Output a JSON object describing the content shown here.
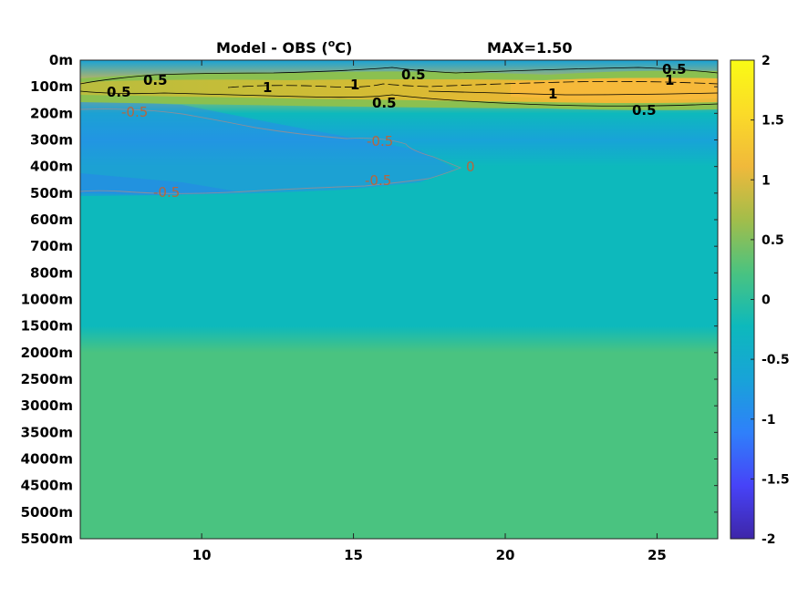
{
  "chart_data": {
    "type": "heatmap",
    "title": "Model - OBS (",
    "title_unit_sup": "o",
    "title_unit_tail": "C)",
    "max_label": "MAX=1.50",
    "x_ticks": [
      10,
      15,
      20,
      25
    ],
    "xlim": [
      6,
      27
    ],
    "y_ticks": [
      "0m",
      "100m",
      "200m",
      "300m",
      "400m",
      "500m",
      "600m",
      "700m",
      "800m",
      "1000m",
      "1500m",
      "2000m",
      "2500m",
      "3000m",
      "3500m",
      "4000m",
      "4500m",
      "5000m",
      "5500m"
    ],
    "colorbar": {
      "range": [
        -2,
        2
      ],
      "ticks": [
        "2",
        "1.5",
        "1",
        "0.5",
        "0",
        "-0.5",
        "-1",
        "-1.5",
        "-2"
      ],
      "colormap": [
        "#3e26a8",
        "#4743f8",
        "#2f80fa",
        "#18a3d8",
        "#0db9bc",
        "#4ac380",
        "#a3bd4a",
        "#f0b93b",
        "#fbdb28",
        "#f9fb15"
      ]
    },
    "depth_profile": [
      {
        "depth": "0m",
        "value": -0.7
      },
      {
        "depth": "100m",
        "value": 1.0
      },
      {
        "depth": "200m",
        "value": -0.4
      },
      {
        "depth": "300m",
        "value": -0.5
      },
      {
        "depth": "400m",
        "value": -0.4
      },
      {
        "depth": "500m",
        "value": -0.35
      },
      {
        "depth": "600m",
        "value": -0.3
      },
      {
        "depth": "700m",
        "value": -0.25
      },
      {
        "depth": "800m",
        "value": -0.2
      },
      {
        "depth": "1000m",
        "value": -0.15
      },
      {
        "depth": "1500m",
        "value": -0.1
      },
      {
        "depth": "2000m",
        "value": 0.05
      },
      {
        "depth": "5500m",
        "value": 0.1
      }
    ],
    "contour_labels": [
      {
        "text": "0.5",
        "sign": "pos"
      },
      {
        "text": "0.5",
        "sign": "pos"
      },
      {
        "text": "1",
        "sign": "pos"
      },
      {
        "text": "1",
        "sign": "pos"
      },
      {
        "text": "0.5",
        "sign": "pos"
      },
      {
        "text": "0.5",
        "sign": "pos"
      },
      {
        "text": "0.5",
        "sign": "pos"
      },
      {
        "text": "1",
        "sign": "pos"
      },
      {
        "text": "1",
        "sign": "pos"
      },
      {
        "text": "0.5",
        "sign": "pos"
      },
      {
        "text": "-0.5",
        "sign": "neg"
      },
      {
        "text": "-0.5",
        "sign": "neg"
      },
      {
        "text": "-0.5",
        "sign": "neg"
      },
      {
        "text": "-0.5",
        "sign": "neg"
      },
      {
        "text": "0",
        "sign": "neg"
      }
    ]
  }
}
